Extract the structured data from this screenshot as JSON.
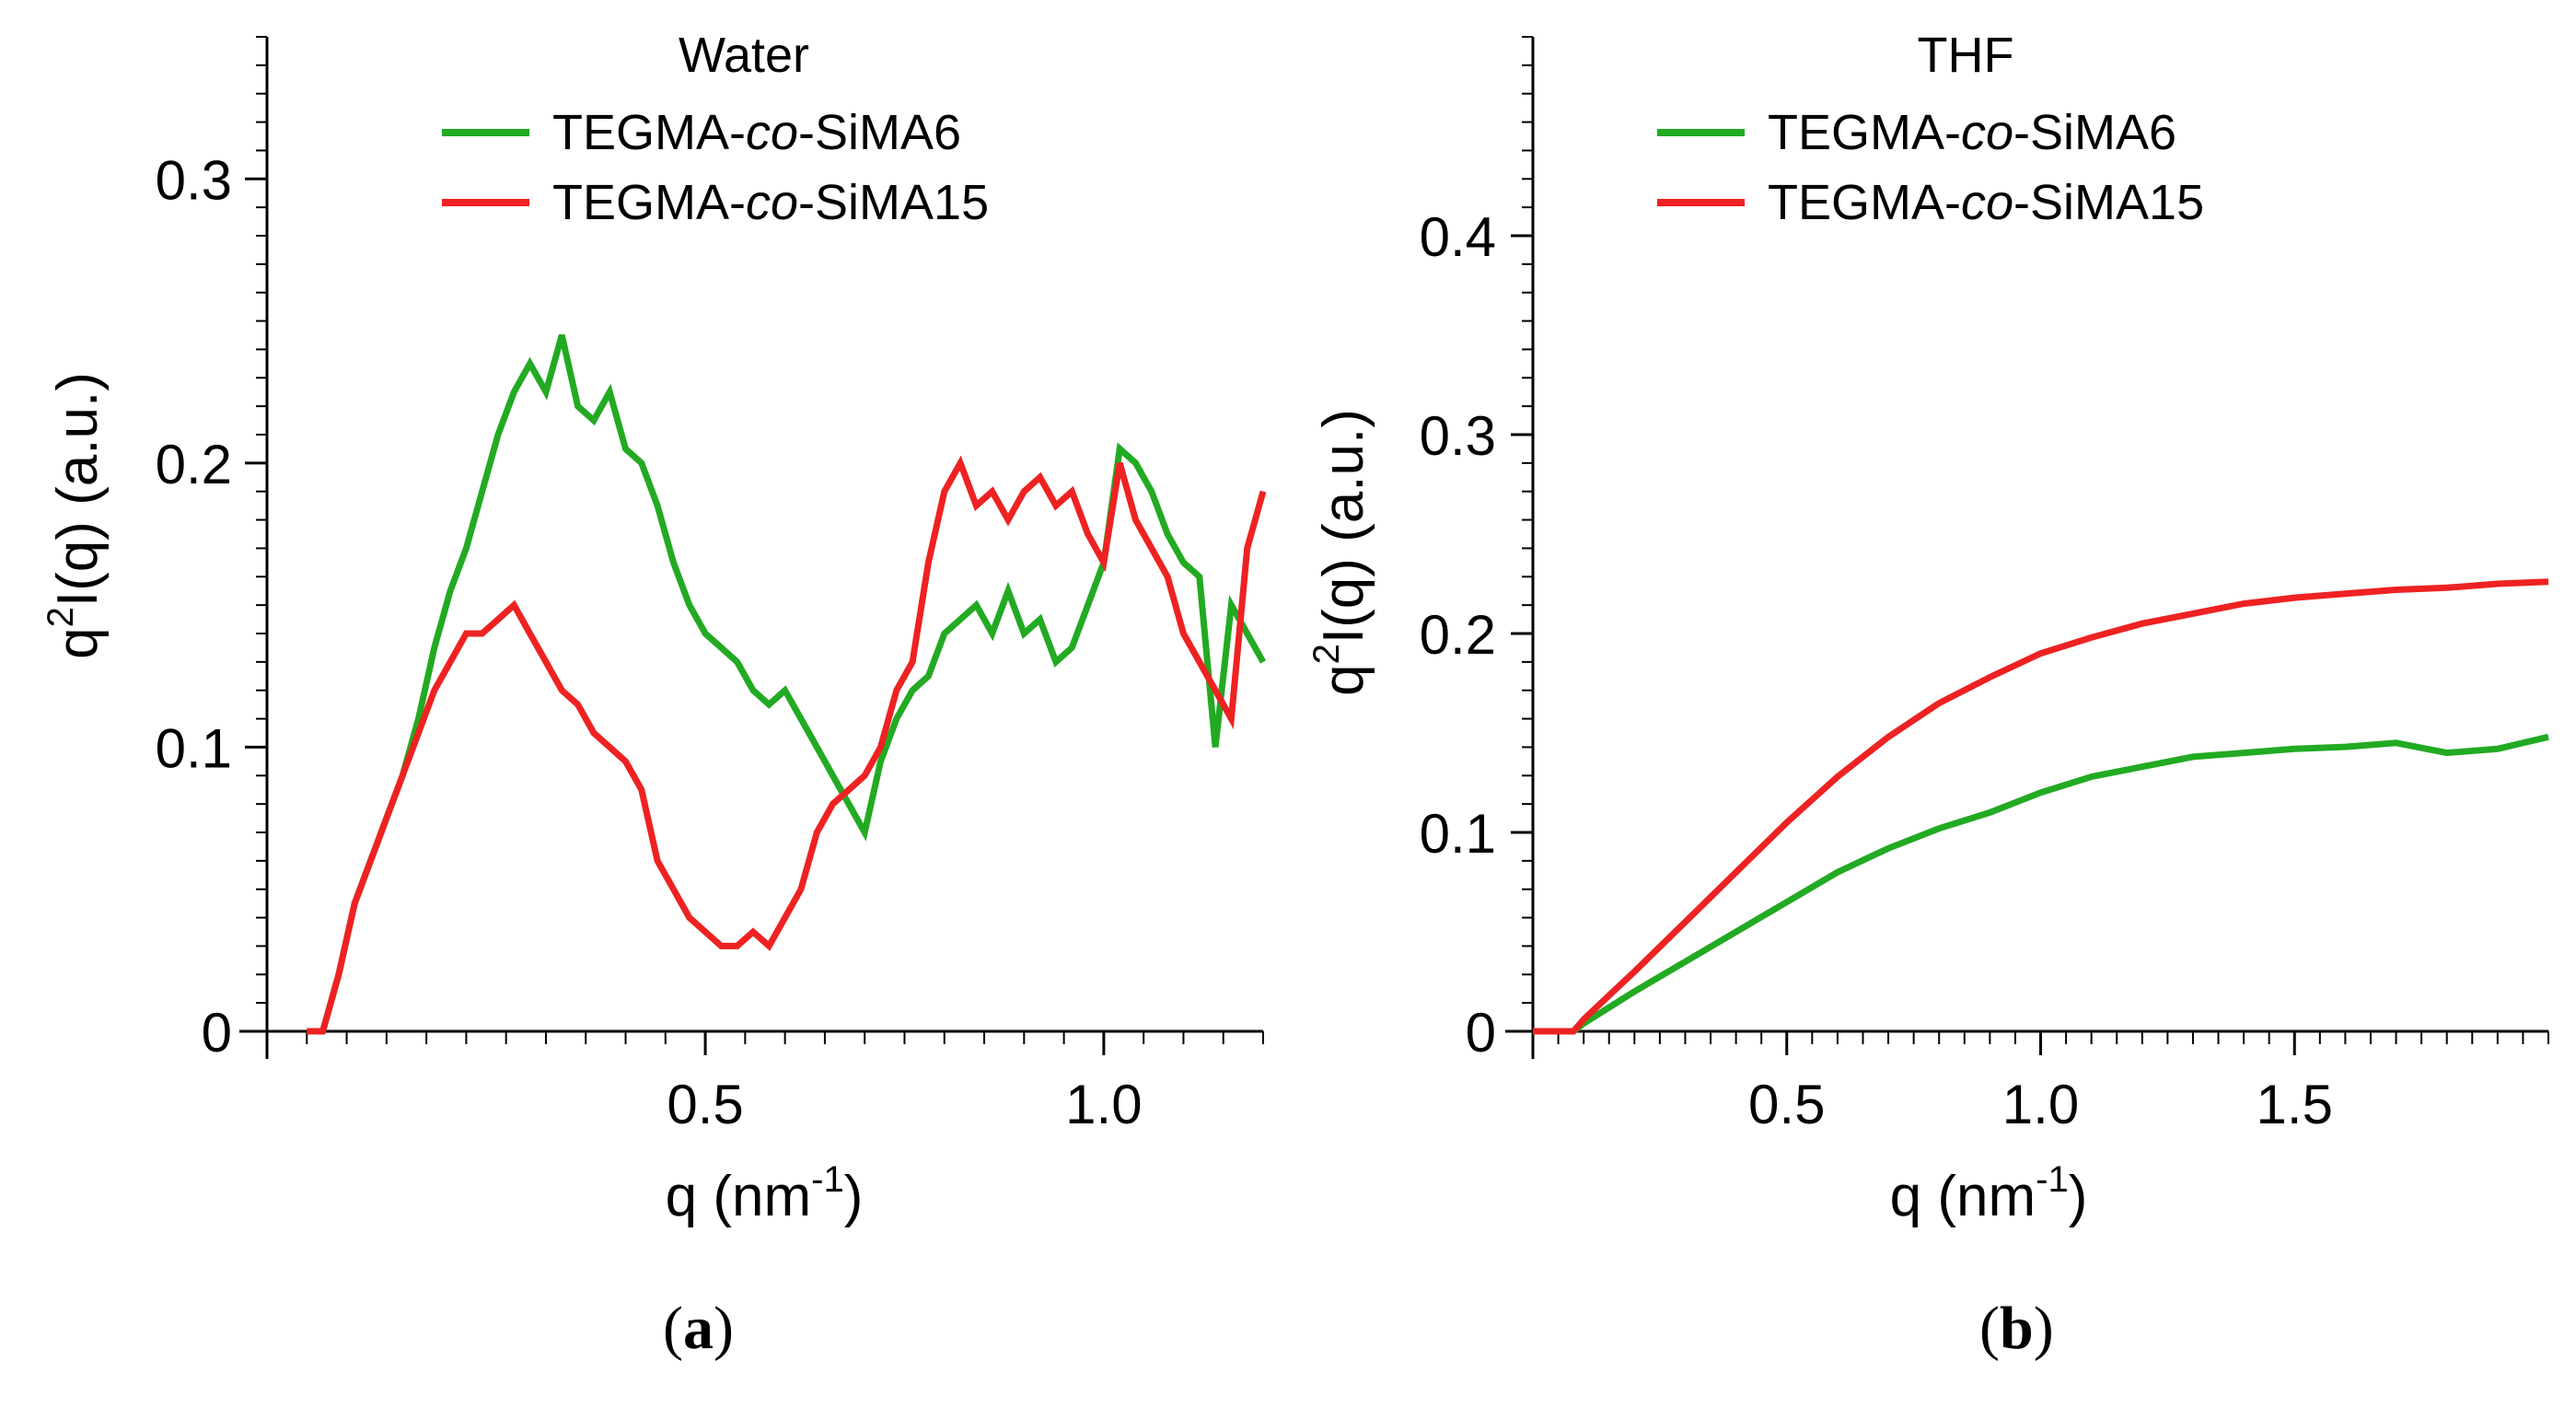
{
  "chart_data": [
    {
      "type": "line",
      "panel_label": "a",
      "title": "Water",
      "xlabel": "q (nm",
      "xlabel_sup": "-1",
      "xlabel_end": ")",
      "ylabel": "q",
      "ylabel_sup": "2",
      "ylabel_end": "I(q) (a.u.)",
      "xlim": [
        -0.05,
        1.2
      ],
      "ylim": [
        0,
        0.35
      ],
      "xticks": [
        0.5,
        1.0
      ],
      "xtick_labels": [
        "0.5",
        "1.0"
      ],
      "yticks": [
        0,
        0.1,
        0.2,
        0.3
      ],
      "ytick_labels": [
        "0",
        "0.1",
        "0.2",
        "0.3"
      ],
      "legend_position": "top-center",
      "series": [
        {
          "name": "TEGMA-co-SiMA6",
          "name_prefix": "TEGMA-",
          "name_italic": "co",
          "name_suffix": "-SiMA6",
          "color": "#22aa22",
          "x": [
            0.0,
            0.02,
            0.04,
            0.06,
            0.08,
            0.1,
            0.12,
            0.14,
            0.16,
            0.18,
            0.2,
            0.22,
            0.24,
            0.26,
            0.28,
            0.3,
            0.32,
            0.34,
            0.36,
            0.38,
            0.4,
            0.42,
            0.44,
            0.46,
            0.48,
            0.5,
            0.52,
            0.54,
            0.56,
            0.58,
            0.6,
            0.62,
            0.64,
            0.66,
            0.68,
            0.7,
            0.72,
            0.74,
            0.76,
            0.78,
            0.8,
            0.82,
            0.84,
            0.86,
            0.88,
            0.9,
            0.92,
            0.94,
            0.96,
            0.98,
            1.0,
            1.02,
            1.04,
            1.06,
            1.08,
            1.1,
            1.12,
            1.14,
            1.16,
            1.18,
            1.2
          ],
          "y": [
            0.0,
            0.0,
            0.02,
            0.045,
            0.06,
            0.075,
            0.09,
            0.11,
            0.135,
            0.155,
            0.17,
            0.19,
            0.21,
            0.225,
            0.235,
            0.225,
            0.245,
            0.22,
            0.215,
            0.225,
            0.205,
            0.2,
            0.185,
            0.165,
            0.15,
            0.14,
            0.135,
            0.13,
            0.12,
            0.115,
            0.12,
            0.11,
            0.1,
            0.09,
            0.08,
            0.07,
            0.095,
            0.11,
            0.12,
            0.125,
            0.14,
            0.145,
            0.15,
            0.14,
            0.155,
            0.14,
            0.145,
            0.13,
            0.135,
            0.15,
            0.165,
            0.205,
            0.2,
            0.19,
            0.175,
            0.165,
            0.16,
            0.1,
            0.15,
            0.14,
            0.13
          ]
        },
        {
          "name": "TEGMA-co-SiMA15",
          "name_prefix": "TEGMA-",
          "name_italic": "co",
          "name_suffix": "-SiMA15",
          "color": "#ee2222",
          "x": [
            0.0,
            0.02,
            0.04,
            0.06,
            0.08,
            0.1,
            0.12,
            0.14,
            0.16,
            0.18,
            0.2,
            0.22,
            0.24,
            0.26,
            0.28,
            0.3,
            0.32,
            0.34,
            0.36,
            0.38,
            0.4,
            0.42,
            0.44,
            0.46,
            0.48,
            0.5,
            0.52,
            0.54,
            0.56,
            0.58,
            0.6,
            0.62,
            0.64,
            0.66,
            0.68,
            0.7,
            0.72,
            0.74,
            0.76,
            0.78,
            0.8,
            0.82,
            0.84,
            0.86,
            0.88,
            0.9,
            0.92,
            0.94,
            0.96,
            0.98,
            1.0,
            1.02,
            1.04,
            1.06,
            1.08,
            1.1,
            1.12,
            1.14,
            1.16,
            1.18,
            1.2
          ],
          "y": [
            0.0,
            0.0,
            0.02,
            0.045,
            0.06,
            0.075,
            0.09,
            0.105,
            0.12,
            0.13,
            0.14,
            0.14,
            0.145,
            0.15,
            0.14,
            0.13,
            0.12,
            0.115,
            0.105,
            0.1,
            0.095,
            0.085,
            0.06,
            0.05,
            0.04,
            0.035,
            0.03,
            0.03,
            0.035,
            0.03,
            0.04,
            0.05,
            0.07,
            0.08,
            0.085,
            0.09,
            0.1,
            0.12,
            0.13,
            0.165,
            0.19,
            0.2,
            0.185,
            0.19,
            0.18,
            0.19,
            0.195,
            0.185,
            0.19,
            0.175,
            0.165,
            0.2,
            0.18,
            0.17,
            0.16,
            0.14,
            0.13,
            0.12,
            0.11,
            0.17,
            0.19
          ]
        }
      ]
    },
    {
      "type": "line",
      "panel_label": "b",
      "title": "THF",
      "xlabel": "q (nm",
      "xlabel_sup": "-1",
      "xlabel_end": ")",
      "ylabel": "q",
      "ylabel_sup": "2",
      "ylabel_end": "I(q) (a.u.)",
      "xlim": [
        0,
        2.0
      ],
      "ylim": [
        0,
        0.5
      ],
      "xticks": [
        0.5,
        1.0,
        1.5
      ],
      "xtick_labels": [
        "0.5",
        "1.0",
        "1.5"
      ],
      "yticks": [
        0,
        0.1,
        0.2,
        0.3,
        0.4
      ],
      "ytick_labels": [
        "0",
        "0.1",
        "0.2",
        "0.3",
        "0.4"
      ],
      "legend_position": "top-center",
      "series": [
        {
          "name": "TEGMA-co-SiMA6",
          "name_prefix": "TEGMA-",
          "name_italic": "co",
          "name_suffix": "-SiMA6",
          "color": "#22aa22",
          "x": [
            0.0,
            0.05,
            0.08,
            0.1,
            0.15,
            0.2,
            0.3,
            0.4,
            0.5,
            0.6,
            0.7,
            0.8,
            0.9,
            1.0,
            1.1,
            1.2,
            1.3,
            1.4,
            1.5,
            1.6,
            1.7,
            1.8,
            1.9,
            2.0
          ],
          "y": [
            0.0,
            0.0,
            0.0,
            0.004,
            0.012,
            0.02,
            0.035,
            0.05,
            0.065,
            0.08,
            0.092,
            0.102,
            0.11,
            0.12,
            0.128,
            0.133,
            0.138,
            0.14,
            0.142,
            0.143,
            0.145,
            0.14,
            0.142,
            0.148
          ]
        },
        {
          "name": "TEGMA-co-SiMA15",
          "name_prefix": "TEGMA-",
          "name_italic": "co",
          "name_suffix": "-SiMA15",
          "color": "#ee2222",
          "x": [
            0.0,
            0.05,
            0.08,
            0.1,
            0.15,
            0.2,
            0.3,
            0.4,
            0.5,
            0.6,
            0.7,
            0.8,
            0.9,
            1.0,
            1.1,
            1.2,
            1.3,
            1.4,
            1.5,
            1.6,
            1.7,
            1.8,
            1.9,
            2.0
          ],
          "y": [
            0.0,
            0.0,
            0.0,
            0.006,
            0.018,
            0.03,
            0.055,
            0.08,
            0.105,
            0.128,
            0.148,
            0.165,
            0.178,
            0.19,
            0.198,
            0.205,
            0.21,
            0.215,
            0.218,
            0.22,
            0.222,
            0.223,
            0.225,
            0.226
          ]
        }
      ]
    }
  ]
}
